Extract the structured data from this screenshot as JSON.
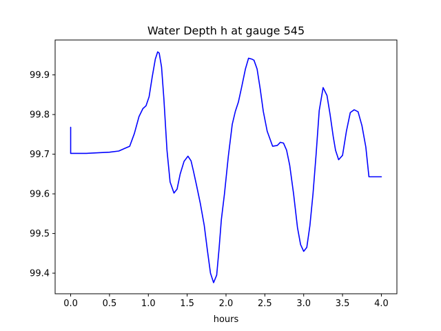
{
  "chart_data": {
    "type": "line",
    "title": "Water Depth h at gauge 545",
    "xlabel": "hours",
    "ylabel": "",
    "xlim": [
      -0.2,
      4.2
    ],
    "ylim": [
      99.348,
      99.988
    ],
    "xticks": [
      0.0,
      0.5,
      1.0,
      1.5,
      2.0,
      2.5,
      3.0,
      3.5,
      4.0
    ],
    "xtick_labels": [
      "0.0",
      "0.5",
      "1.0",
      "1.5",
      "2.0",
      "2.5",
      "3.0",
      "3.5",
      "4.0"
    ],
    "yticks": [
      99.4,
      99.5,
      99.6,
      99.7,
      99.8,
      99.9
    ],
    "ytick_labels": [
      "99.4",
      "99.5",
      "99.6",
      "99.7",
      "99.8",
      "99.9"
    ],
    "grid": false,
    "line_color": "#0000ff",
    "series": [
      {
        "x": [
          0.0,
          0.0,
          0.2,
          0.5,
          0.62,
          0.7,
          0.76,
          0.82,
          0.88,
          0.93,
          0.97,
          1.01,
          1.05,
          1.09,
          1.12,
          1.14,
          1.17,
          1.2,
          1.24,
          1.28,
          1.33,
          1.37,
          1.41,
          1.46,
          1.51,
          1.55,
          1.58,
          1.62,
          1.67,
          1.72,
          1.76,
          1.8,
          1.84,
          1.88,
          1.91,
          1.94,
          1.98,
          2.03,
          2.08,
          2.12,
          2.16,
          2.2,
          2.25,
          2.29,
          2.33,
          2.36,
          2.4,
          2.44,
          2.48,
          2.53,
          2.6,
          2.66,
          2.7,
          2.74,
          2.78,
          2.82,
          2.87,
          2.92,
          2.96,
          3.0,
          3.04,
          3.08,
          3.12,
          3.16,
          3.2,
          3.25,
          3.3,
          3.34,
          3.38,
          3.41,
          3.45,
          3.5,
          3.55,
          3.6,
          3.65,
          3.7,
          3.75,
          3.8,
          3.84,
          3.88,
          3.92,
          3.96,
          4.0
        ],
        "y": [
          99.768,
          99.702,
          99.702,
          99.705,
          99.708,
          99.715,
          99.72,
          99.752,
          99.795,
          99.815,
          99.822,
          99.845,
          99.895,
          99.94,
          99.958,
          99.955,
          99.92,
          99.84,
          99.71,
          99.63,
          99.602,
          99.612,
          99.65,
          99.682,
          99.695,
          99.683,
          99.658,
          99.622,
          99.575,
          99.52,
          99.458,
          99.4,
          99.376,
          99.395,
          99.46,
          99.535,
          99.6,
          99.695,
          99.775,
          99.808,
          99.832,
          99.868,
          99.915,
          99.942,
          99.94,
          99.937,
          99.915,
          99.865,
          99.808,
          99.758,
          99.72,
          99.722,
          99.73,
          99.728,
          99.71,
          99.672,
          99.6,
          99.515,
          99.472,
          99.455,
          99.465,
          99.52,
          99.6,
          99.7,
          99.81,
          99.868,
          99.848,
          99.8,
          99.745,
          99.71,
          99.686,
          99.697,
          99.758,
          99.805,
          99.812,
          99.807,
          99.772,
          99.718,
          99.643,
          99.643,
          99.643,
          99.643,
          99.643
        ]
      }
    ]
  }
}
